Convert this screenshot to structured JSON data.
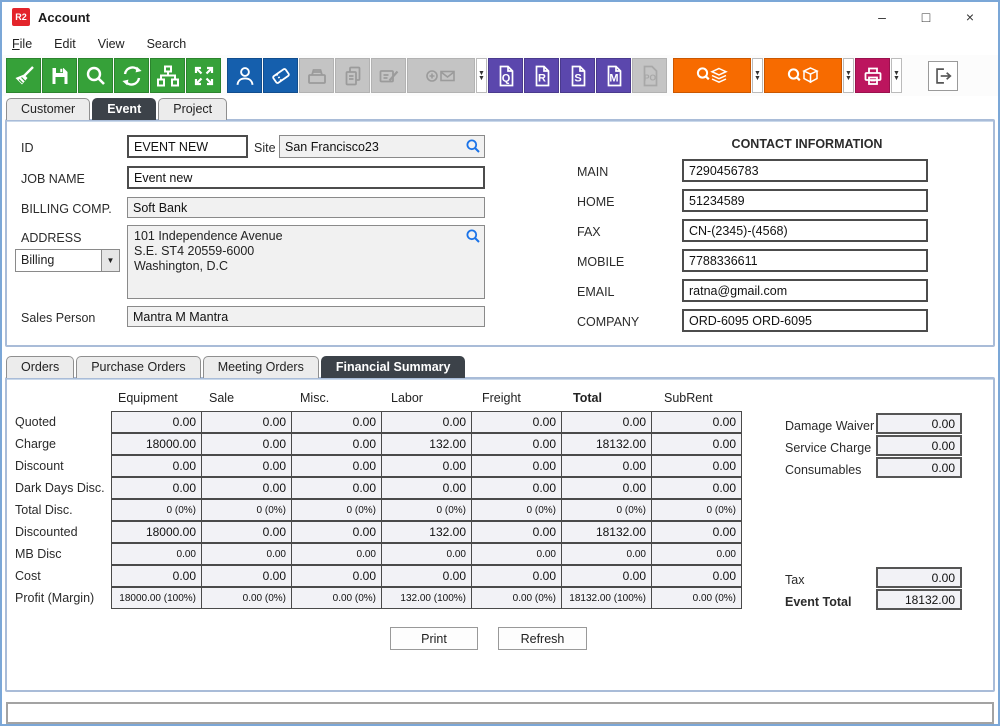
{
  "window": {
    "logo": "R2",
    "title": "Account",
    "controls": {
      "minimize": "–",
      "maximize": "□",
      "close": "×"
    }
  },
  "menu": {
    "items": [
      "File",
      "Edit",
      "View",
      "Search"
    ]
  },
  "toolbar": {
    "doc_letters": [
      "Q",
      "R",
      "S",
      "M"
    ],
    "po_label": "PO"
  },
  "tabs_top": {
    "items": [
      "Customer",
      "Event",
      "Project"
    ],
    "active": "Event"
  },
  "form": {
    "id_label": "ID",
    "id_value": "EVENT NEW",
    "site_label": "Site",
    "site_value": "San Francisco23",
    "job_label": "JOB NAME",
    "job_value": "Event new",
    "billing_label": "BILLING COMP.",
    "billing_value": "Soft Bank",
    "address_label": "ADDRESS",
    "address_type": "Billing",
    "address_value": "101 Independence Avenue\nS.E. ST4 20559-6000\nWashington, D.C",
    "sales_label": "Sales Person",
    "sales_value": "Mantra M Mantra"
  },
  "contact": {
    "title": "CONTACT INFORMATION",
    "fields": [
      {
        "label": "MAIN",
        "value": "7290456783"
      },
      {
        "label": "HOME",
        "value": "51234589"
      },
      {
        "label": "FAX",
        "value": "CN-(2345)-(4568)"
      },
      {
        "label": "MOBILE",
        "value": "7788336611"
      },
      {
        "label": "EMAIL",
        "value": "ratna@gmail.com"
      },
      {
        "label": "COMPANY",
        "value": "ORD-6095 ORD-6095"
      }
    ]
  },
  "tabs_bottom": {
    "items": [
      "Orders",
      "Purchase Orders",
      "Meeting Orders",
      "Financial Summary"
    ],
    "active": "Financial Summary"
  },
  "financial": {
    "columns": [
      "Equipment",
      "Sale",
      "Misc.",
      "Labor",
      "Freight",
      "Total",
      "SubRent"
    ],
    "rows": [
      {
        "label": "Quoted",
        "small": false,
        "values": [
          "0.00",
          "0.00",
          "0.00",
          "0.00",
          "0.00",
          "0.00",
          "0.00"
        ]
      },
      {
        "label": "Charge",
        "small": false,
        "values": [
          "18000.00",
          "0.00",
          "0.00",
          "132.00",
          "0.00",
          "18132.00",
          "0.00"
        ]
      },
      {
        "label": "Discount",
        "small": false,
        "values": [
          "0.00",
          "0.00",
          "0.00",
          "0.00",
          "0.00",
          "0.00",
          "0.00"
        ]
      },
      {
        "label": "Dark Days Disc.",
        "small": false,
        "values": [
          "0.00",
          "0.00",
          "0.00",
          "0.00",
          "0.00",
          "0.00",
          "0.00"
        ]
      },
      {
        "label": "Total Disc.",
        "small": true,
        "values": [
          "0 (0%)",
          "0 (0%)",
          "0 (0%)",
          "0 (0%)",
          "0 (0%)",
          "0 (0%)",
          "0 (0%)"
        ]
      },
      {
        "label": "Discounted",
        "small": false,
        "values": [
          "18000.00",
          "0.00",
          "0.00",
          "132.00",
          "0.00",
          "18132.00",
          "0.00"
        ]
      },
      {
        "label": "MB Disc",
        "small": true,
        "values": [
          "0.00",
          "0.00",
          "0.00",
          "0.00",
          "0.00",
          "0.00",
          "0.00"
        ]
      },
      {
        "label": "Cost",
        "small": false,
        "values": [
          "0.00",
          "0.00",
          "0.00",
          "0.00",
          "0.00",
          "0.00",
          "0.00"
        ]
      },
      {
        "label": "Profit (Margin)",
        "small": true,
        "values": [
          "18000.00 (100%)",
          "0.00 (0%)",
          "0.00 (0%)",
          "132.00 (100%)",
          "0.00 (0%)",
          "18132.00 (100%)",
          "0.00 (0%)"
        ]
      }
    ],
    "side_fields": [
      {
        "label": "Damage Waiver",
        "value": "0.00"
      },
      {
        "label": "Service Charge",
        "value": "0.00"
      },
      {
        "label": "Consumables",
        "value": "0.00"
      }
    ],
    "tax": {
      "label": "Tax",
      "value": "0.00"
    },
    "event_total": {
      "label": "Event Total",
      "value": "18132.00"
    },
    "buttons": {
      "print": "Print",
      "refresh": "Refresh"
    }
  },
  "colors": {
    "green": "#36a139",
    "blue": "#155fad",
    "purple": "#5b47ad",
    "orange": "#f76b00",
    "magenta": "#bc155e",
    "logo_red": "#e3242b",
    "tab_active": "#3c4249",
    "window_border": "#7ba7d7"
  }
}
